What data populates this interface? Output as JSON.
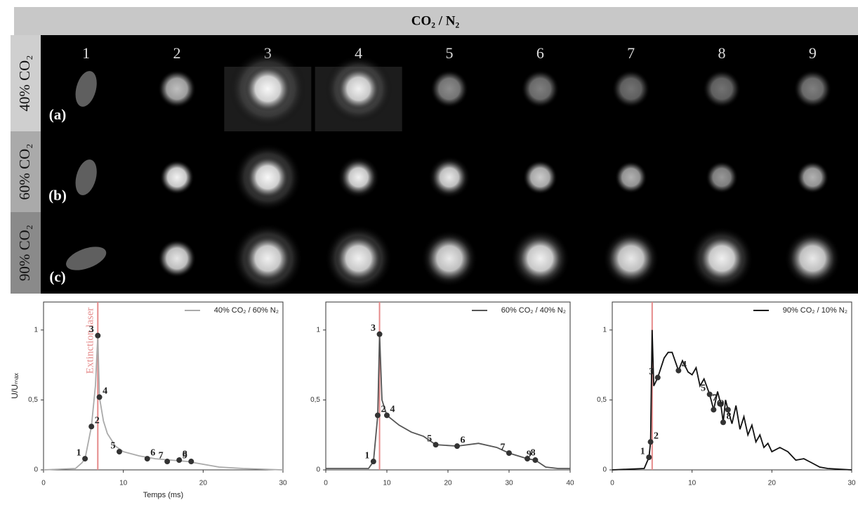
{
  "figure": {
    "title": "CO₂ / N₂",
    "columns": [
      "1",
      "2",
      "3",
      "4",
      "5",
      "6",
      "7",
      "8",
      "9"
    ],
    "rows": [
      {
        "label": "40% CO₂",
        "tag": "(a)"
      },
      {
        "label": "60% CO₂",
        "tag": "(b)"
      },
      {
        "label": "90% CO₂",
        "tag": "(c)"
      }
    ]
  },
  "chart_data": [
    {
      "type": "line",
      "x_label": "Temps (ms)",
      "y_label": "U/Uₘₐₓ",
      "annotation": "Extinction laser",
      "laser_x": 6.8,
      "laser_color": "#e58a8a",
      "xlim": [
        0,
        30
      ],
      "ylim": [
        0,
        1.2
      ],
      "xticks": [
        0,
        10,
        20,
        30
      ],
      "yticks": [
        0,
        {
          "value": 0.5,
          "label": "0,5"
        },
        1
      ],
      "series": [
        {
          "name": "40% CO₂ / 60% N₂",
          "color": "#aaaaaa",
          "x": [
            0,
            4,
            4.8,
            5.2,
            6.0,
            6.5,
            6.8,
            7.0,
            7.5,
            8,
            9,
            10,
            12,
            14,
            16,
            18,
            20,
            22,
            25,
            30
          ],
          "values": [
            0,
            0.01,
            0.05,
            0.08,
            0.31,
            0.6,
            0.96,
            0.52,
            0.35,
            0.26,
            0.17,
            0.13,
            0.1,
            0.08,
            0.07,
            0.06,
            0.04,
            0.02,
            0.01,
            0
          ]
        }
      ],
      "markers": {
        "labels": [
          "1",
          "2",
          "3",
          "4",
          "5",
          "6",
          "7",
          "8",
          "9"
        ],
        "x": [
          5.2,
          6.0,
          6.8,
          7.0,
          9.5,
          13,
          15.5,
          17,
          18.5
        ],
        "values": [
          0.08,
          0.31,
          0.96,
          0.52,
          0.13,
          0.08,
          0.06,
          0.07,
          0.06
        ]
      }
    },
    {
      "type": "line",
      "laser_x": 8.8,
      "laser_color": "#e58a8a",
      "xlim": [
        0,
        40
      ],
      "ylim": [
        0,
        1.2
      ],
      "xticks": [
        0,
        10,
        20,
        30,
        40
      ],
      "yticks": [
        0,
        {
          "value": 0.5,
          "label": "0,5"
        },
        1
      ],
      "series": [
        {
          "name": "60% CO₂ / 40% N₂",
          "color": "#555555",
          "x": [
            0,
            7,
            7.8,
            8.5,
            8.8,
            9.2,
            10,
            12,
            14,
            16,
            18,
            21.5,
            25,
            28,
            30,
            33,
            34.3,
            36,
            38,
            40
          ],
          "values": [
            0.01,
            0.01,
            0.06,
            0.39,
            0.97,
            0.5,
            0.39,
            0.32,
            0.27,
            0.24,
            0.18,
            0.17,
            0.19,
            0.16,
            0.12,
            0.08,
            0.07,
            0.02,
            0.01,
            0.01
          ]
        }
      ],
      "markers": {
        "labels": [
          "1",
          "2",
          "3",
          "4",
          "5",
          "6",
          "7",
          "8",
          "9"
        ],
        "x": [
          7.8,
          8.5,
          8.8,
          10,
          18,
          21.5,
          30,
          33,
          34.3
        ],
        "values": [
          0.06,
          0.39,
          0.97,
          0.39,
          0.18,
          0.17,
          0.12,
          0.08,
          0.07
        ]
      }
    },
    {
      "type": "line",
      "laser_x": 5.0,
      "laser_color": "#e58a8a",
      "xlim": [
        0,
        30
      ],
      "ylim": [
        0,
        1.2
      ],
      "xticks": [
        0,
        10,
        20,
        30
      ],
      "yticks": [
        0,
        {
          "value": 0.5,
          "label": "0,5"
        },
        1
      ],
      "series": [
        {
          "name": "90% CO₂ / 10% N₂",
          "color": "#111111",
          "x": [
            0,
            4,
            4.6,
            4.8,
            5.0,
            5.2,
            5.7,
            6.5,
            7,
            7.5,
            8.3,
            8.8,
            9.5,
            10,
            10.5,
            11,
            11.5,
            12.2,
            12.7,
            13.2,
            13.6,
            13.9,
            14.2,
            14.5,
            15,
            15.5,
            16,
            16.5,
            17,
            17.5,
            18,
            18.5,
            19,
            19.5,
            20,
            21,
            22,
            23,
            24,
            25,
            26,
            27,
            30
          ],
          "values": [
            0,
            0.01,
            0.09,
            0.2,
            1.0,
            0.6,
            0.66,
            0.8,
            0.84,
            0.84,
            0.71,
            0.78,
            0.7,
            0.68,
            0.73,
            0.6,
            0.65,
            0.54,
            0.43,
            0.56,
            0.47,
            0.34,
            0.5,
            0.43,
            0.33,
            0.46,
            0.29,
            0.38,
            0.25,
            0.32,
            0.2,
            0.25,
            0.16,
            0.19,
            0.13,
            0.16,
            0.13,
            0.07,
            0.08,
            0.05,
            0.02,
            0.01,
            0
          ]
        }
      ],
      "markers": {
        "labels": [
          "1",
          "2",
          "3",
          "4",
          "5",
          "6",
          "7",
          "8",
          "9"
        ],
        "x": [
          4.6,
          4.8,
          5.7,
          8.3,
          12.2,
          12.7,
          13.6,
          13.9,
          14.5
        ],
        "values": [
          0.09,
          0.2,
          0.66,
          0.71,
          0.54,
          0.43,
          0.47,
          0.34,
          0.43
        ]
      }
    }
  ]
}
